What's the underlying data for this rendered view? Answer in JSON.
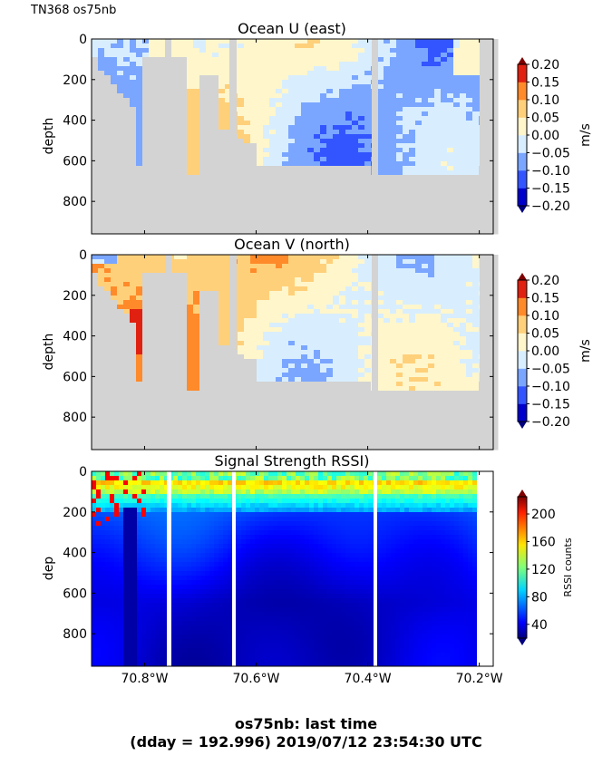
{
  "cruise_label": "TN368 os75nb",
  "footer": {
    "line1": "os75nb: last time",
    "line2": "(dday = 192.996) 2019/07/12 23:54:30 UTC"
  },
  "chart_data": [
    {
      "type": "heatmap",
      "title": "Ocean U (east)",
      "xlabel": "",
      "ylabel": "depth",
      "colorbar_label": "m/s",
      "colormap": "jet",
      "colorbar_ticks": [
        "0.20",
        "0.15",
        "0.10",
        "0.05",
        "0.00",
        "−0.05",
        "−0.10",
        "−0.15",
        "−0.20"
      ],
      "clim": [
        -0.2,
        0.2
      ],
      "ylim": [
        960,
        0
      ],
      "yticks": [
        "0",
        "200",
        "400",
        "600",
        "800"
      ],
      "xlim": [
        -70.895,
        -70.175
      ],
      "xticks": [
        "70.8°W",
        "70.6°W",
        "70.4°W",
        "70.2°W"
      ],
      "nodata_color": "#d3d3d3"
    },
    {
      "type": "heatmap",
      "title": "Ocean V (north)",
      "xlabel": "",
      "ylabel": "depth",
      "colorbar_label": "m/s",
      "colormap": "jet",
      "colorbar_ticks": [
        "0.20",
        "0.15",
        "0.10",
        "0.05",
        "0.00",
        "−0.05",
        "−0.10",
        "−0.15",
        "−0.20"
      ],
      "clim": [
        -0.2,
        0.2
      ],
      "ylim": [
        960,
        0
      ],
      "yticks": [
        "0",
        "200",
        "400",
        "600",
        "800"
      ],
      "xlim": [
        -70.895,
        -70.175
      ],
      "xticks": [
        "70.8°W",
        "70.6°W",
        "70.4°W",
        "70.2°W"
      ],
      "nodata_color": "#d3d3d3"
    },
    {
      "type": "heatmap",
      "title": "Signal Strength RSSI)",
      "xlabel": "",
      "ylabel": "dep",
      "colorbar_label": "RSSI counts",
      "colormap": "jet",
      "colorbar_ticks": [
        "200",
        "160",
        "120",
        "80",
        "40"
      ],
      "clim": [
        20,
        225
      ],
      "ylim": [
        960,
        0
      ],
      "yticks": [
        "0",
        "200",
        "400",
        "600",
        "800"
      ],
      "xlim": [
        -70.895,
        -70.175
      ],
      "xticks": [
        "70.8°W",
        "70.6°W",
        "70.4°W",
        "70.2°W"
      ]
    }
  ]
}
